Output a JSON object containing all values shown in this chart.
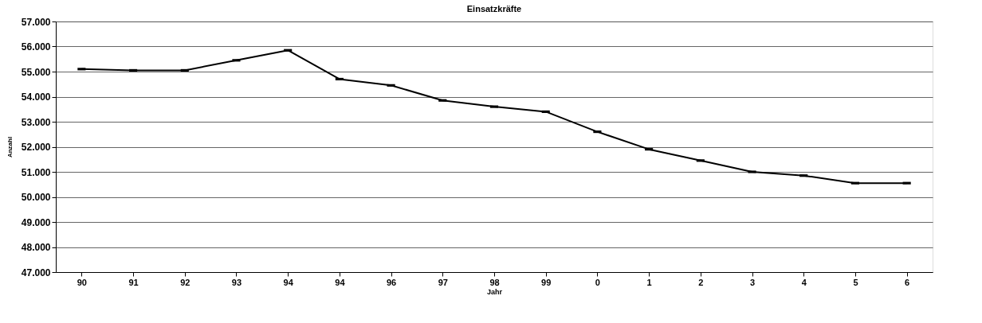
{
  "chart_data": {
    "type": "line",
    "title": "Einsatzkräfte",
    "xlabel": "Jahr",
    "ylabel": "Anzahl",
    "categories": [
      "90",
      "91",
      "92",
      "93",
      "94",
      "94",
      "96",
      "97",
      "98",
      "99",
      "0",
      "1",
      "2",
      "3",
      "4",
      "5",
      "6"
    ],
    "series": [
      {
        "color": "#000000",
        "values": [
          55100,
          55050,
          55050,
          55450,
          55850,
          54700,
          54450,
          53850,
          53600,
          53400,
          52600,
          51900,
          51450,
          51000,
          50850,
          50550,
          50550
        ]
      }
    ],
    "ylim": [
      47000,
      57000
    ],
    "yticks": [
      {
        "value": 47000,
        "label": "47.000"
      },
      {
        "value": 48000,
        "label": "48.000"
      },
      {
        "value": 49000,
        "label": "49.000"
      },
      {
        "value": 50000,
        "label": "50.000"
      },
      {
        "value": 51000,
        "label": "51.000"
      },
      {
        "value": 52000,
        "label": "52.000"
      },
      {
        "value": 53000,
        "label": "53.000"
      },
      {
        "value": 54000,
        "label": "54.000"
      },
      {
        "value": 55000,
        "label": "55.000"
      },
      {
        "value": 56000,
        "label": "56.000"
      },
      {
        "value": 57000,
        "label": "57.000"
      }
    ],
    "grid": "y",
    "marker": "square",
    "line_style": "solid"
  }
}
